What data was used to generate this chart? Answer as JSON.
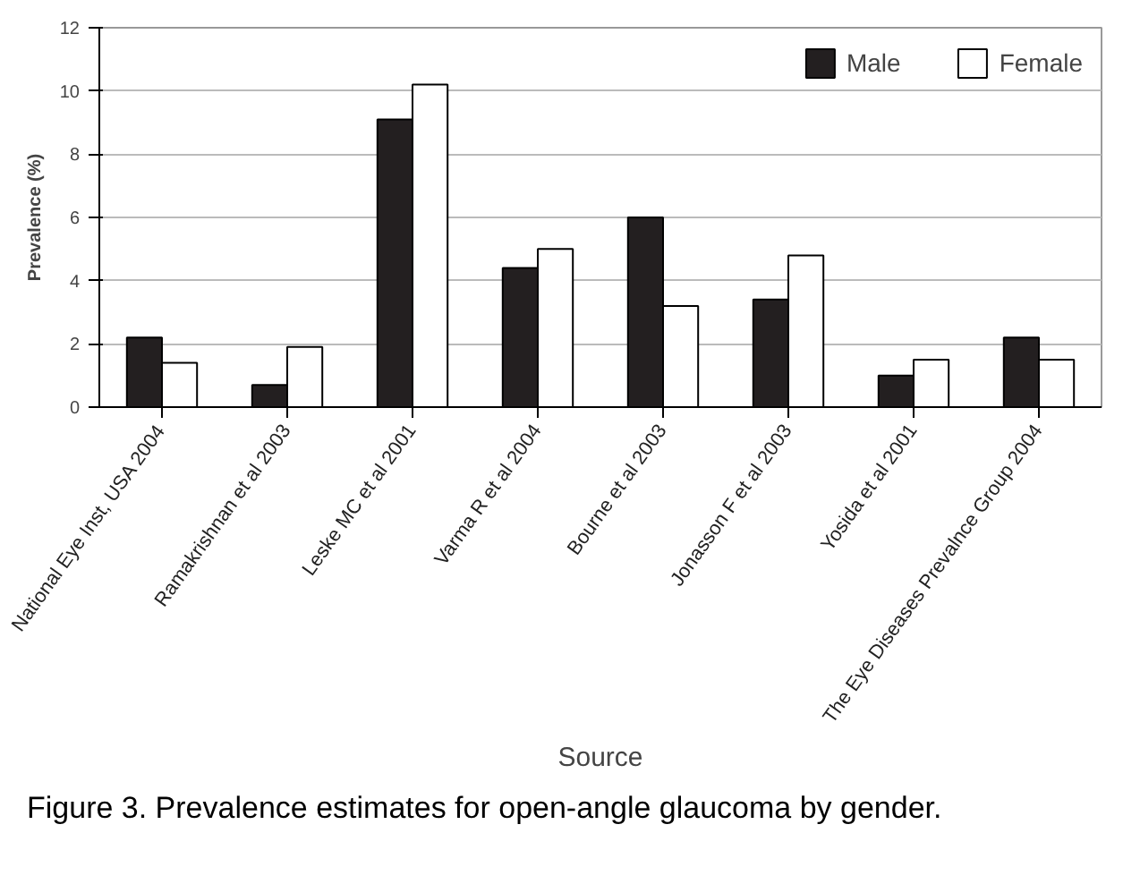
{
  "chart_data": {
    "type": "bar",
    "xlabel": "Source",
    "ylabel": "Prevalence (%)",
    "categories": [
      "National Eye Inst, USA 2004",
      "Ramakrishnan et al 2003",
      "Leske MC et al 2001",
      "Varma R et al 2004",
      "Bourne et al 2003",
      "Jonasson F et al 2003",
      "Yosida et al 2001",
      "The Eye Diseases Prevalnce Group 2004"
    ],
    "series": [
      {
        "name": "Male",
        "color": "#231f20",
        "values": [
          2.2,
          0.7,
          9.1,
          4.4,
          6.0,
          3.4,
          1.0,
          2.2
        ]
      },
      {
        "name": "Female",
        "color": "#ffffff",
        "values": [
          1.4,
          1.9,
          10.2,
          5.0,
          3.2,
          4.8,
          1.5,
          1.5
        ]
      }
    ],
    "ylim": [
      0,
      12
    ],
    "yticks": [
      0,
      2,
      4,
      6,
      8,
      10,
      12
    ],
    "grid": "y",
    "legend": "top right",
    "annotations": [
      "Figure 3.  Prevalence estimates for open-angle glaucoma by gender."
    ]
  }
}
